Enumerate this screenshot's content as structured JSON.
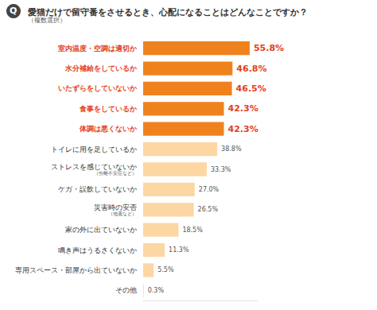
{
  "chart_data": {
    "type": "bar",
    "question_label": "Q",
    "title": "愛猫だけで留守番をさせるとき、心配になることはどんなことですか？",
    "subtitle": "（複数選択）",
    "orientation": "horizontal",
    "categories": [
      "室内温度・空調は適切か",
      "水分補給をしているか",
      "いたずらをしていないか",
      "食事をしているか",
      "体調は悪くないか",
      "トイレに用を足しているか",
      "ストレスを感じていないか\n（分離不安症など）",
      "ケガ・誤飲していないか",
      "災害時の安否\n（地震など）",
      "家の外に出ていないか",
      "鳴き声はうるさくないか",
      "専用スペース・部屋から出ていないか",
      "その他"
    ],
    "values": [
      55.8,
      46.8,
      46.5,
      42.3,
      42.3,
      38.8,
      33.3,
      27.0,
      26.5,
      18.5,
      11.3,
      5.5,
      0.3
    ],
    "value_labels": [
      "55.8%",
      "46.8%",
      "46.5%",
      "42.3%",
      "42.3%",
      "38.8%",
      "33.3%",
      "27.0%",
      "26.5%",
      "18.5%",
      "11.3%",
      "5.5%",
      "0.3%"
    ],
    "colors": [
      "#f0821e",
      "#f0821e",
      "#f0821e",
      "#f0821e",
      "#f0821e",
      "#fcd7a4",
      "#fcd7a4",
      "#fcd7a4",
      "#fcd7a4",
      "#fcd7a4",
      "#fcd7a4",
      "#fcd7a4",
      "#fcd7a4"
    ],
    "xlim": [
      0,
      60
    ],
    "data_labels": true,
    "tick_labels": "y",
    "grid": false
  }
}
